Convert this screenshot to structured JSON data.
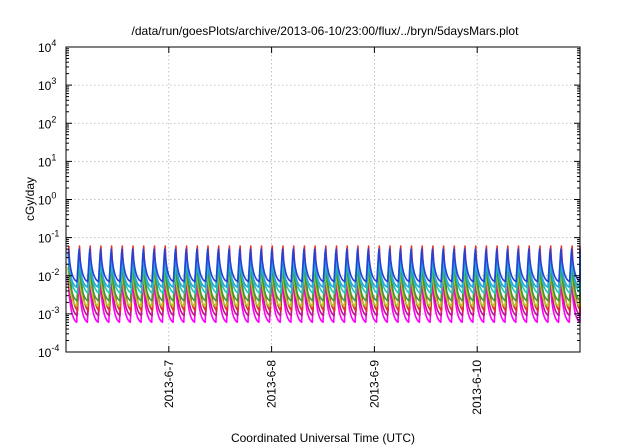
{
  "chart_data": {
    "type": "line",
    "title": "/data/run/goesPlots/archive/2013-06-10/23:00/flux/../bryn/5daysMars.plot",
    "xlabel": "Coordinated Universal Time (UTC)",
    "ylabel": "cGy/day",
    "yscale": "log",
    "ylim": [
      0.0001,
      10000
    ],
    "xlim": [
      "2013-06-06 00:00",
      "2013-06-11 00:00"
    ],
    "grid": true,
    "ytick_base": "10",
    "yticks": [
      {
        "exp": "-4",
        "value": 0.0001
      },
      {
        "exp": "-3",
        "value": 0.001
      },
      {
        "exp": "-2",
        "value": 0.01
      },
      {
        "exp": "-1",
        "value": 0.1
      },
      {
        "exp": "0",
        "value": 1
      },
      {
        "exp": "1",
        "value": 10
      },
      {
        "exp": "2",
        "value": 100
      },
      {
        "exp": "3",
        "value": 1000
      },
      {
        "exp": "4",
        "value": 10000
      }
    ],
    "xticks": [
      "2013-6-7",
      "2013-6-8",
      "2013-6-9",
      "2013-6-10"
    ],
    "xtick_dates": [
      "2013-06-07",
      "2013-06-08",
      "2013-06-09",
      "2013-06-10"
    ],
    "cycles_per_day": 9.5,
    "series": [
      {
        "color": "#2a3fd6",
        "peak": 0.05,
        "trough": 0.007
      },
      {
        "color": "#2aa5e0",
        "peak": 0.04,
        "trough": 0.005
      },
      {
        "color": "#1ec8b8",
        "peak": 0.03,
        "trough": 0.0035
      },
      {
        "color": "#3a9a3a",
        "peak": 0.022,
        "trough": 0.0022
      },
      {
        "color": "#b4c81e",
        "peak": 0.017,
        "trough": 0.0016
      },
      {
        "color": "#e0312e",
        "peak": 0.06,
        "trough": 0.0012
      },
      {
        "color": "#c0178a",
        "peak": 0.013,
        "trough": 0.0009
      },
      {
        "color": "#ff00ff",
        "peak": 0.01,
        "trough": 0.0006
      }
    ]
  }
}
